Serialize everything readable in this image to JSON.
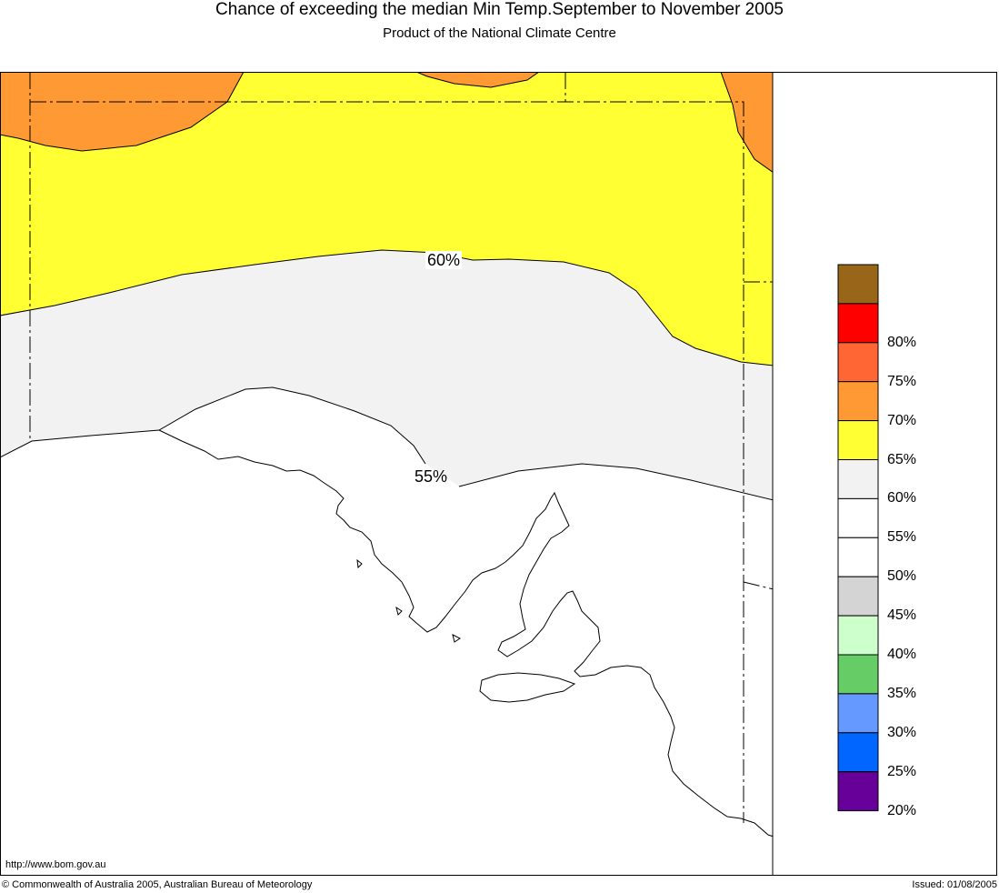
{
  "header": {
    "title": "Chance of exceeding the median Min Temp.September to November 2005",
    "subtitle": "Product of the National Climate Centre"
  },
  "map": {
    "contour_labels": [
      "60%",
      "55%"
    ],
    "regions": [
      {
        "name": "orange",
        "color": "#ff9933"
      },
      {
        "name": "yellow",
        "color": "#ffff33"
      },
      {
        "name": "light-grey",
        "color": "#f2f2f2"
      },
      {
        "name": "white",
        "color": "#ffffff"
      }
    ]
  },
  "legend": {
    "items": [
      {
        "label": "",
        "color": "#996619"
      },
      {
        "label": "80%",
        "color": "#ff0000"
      },
      {
        "label": "75%",
        "color": "#ff6633"
      },
      {
        "label": "70%",
        "color": "#ff9933"
      },
      {
        "label": "65%",
        "color": "#ffff33"
      },
      {
        "label": "60%",
        "color": "#f2f2f2"
      },
      {
        "label": "55%",
        "color": "#ffffff"
      },
      {
        "label": "50%",
        "color": "#ffffff"
      },
      {
        "label": "45%",
        "color": "#d4d4d4"
      },
      {
        "label": "40%",
        "color": "#ccffcc"
      },
      {
        "label": "35%",
        "color": "#66cc66"
      },
      {
        "label": "30%",
        "color": "#6699ff"
      },
      {
        "label": "25%",
        "color": "#0066ff"
      },
      {
        "label": "20%",
        "color": "#660099"
      }
    ]
  },
  "footer": {
    "url": "http://www.bom.gov.au",
    "copyright": "© Commonwealth of Australia 2005, Australian Bureau of Meteorology",
    "issued": "Issued: 01/08/2005"
  }
}
